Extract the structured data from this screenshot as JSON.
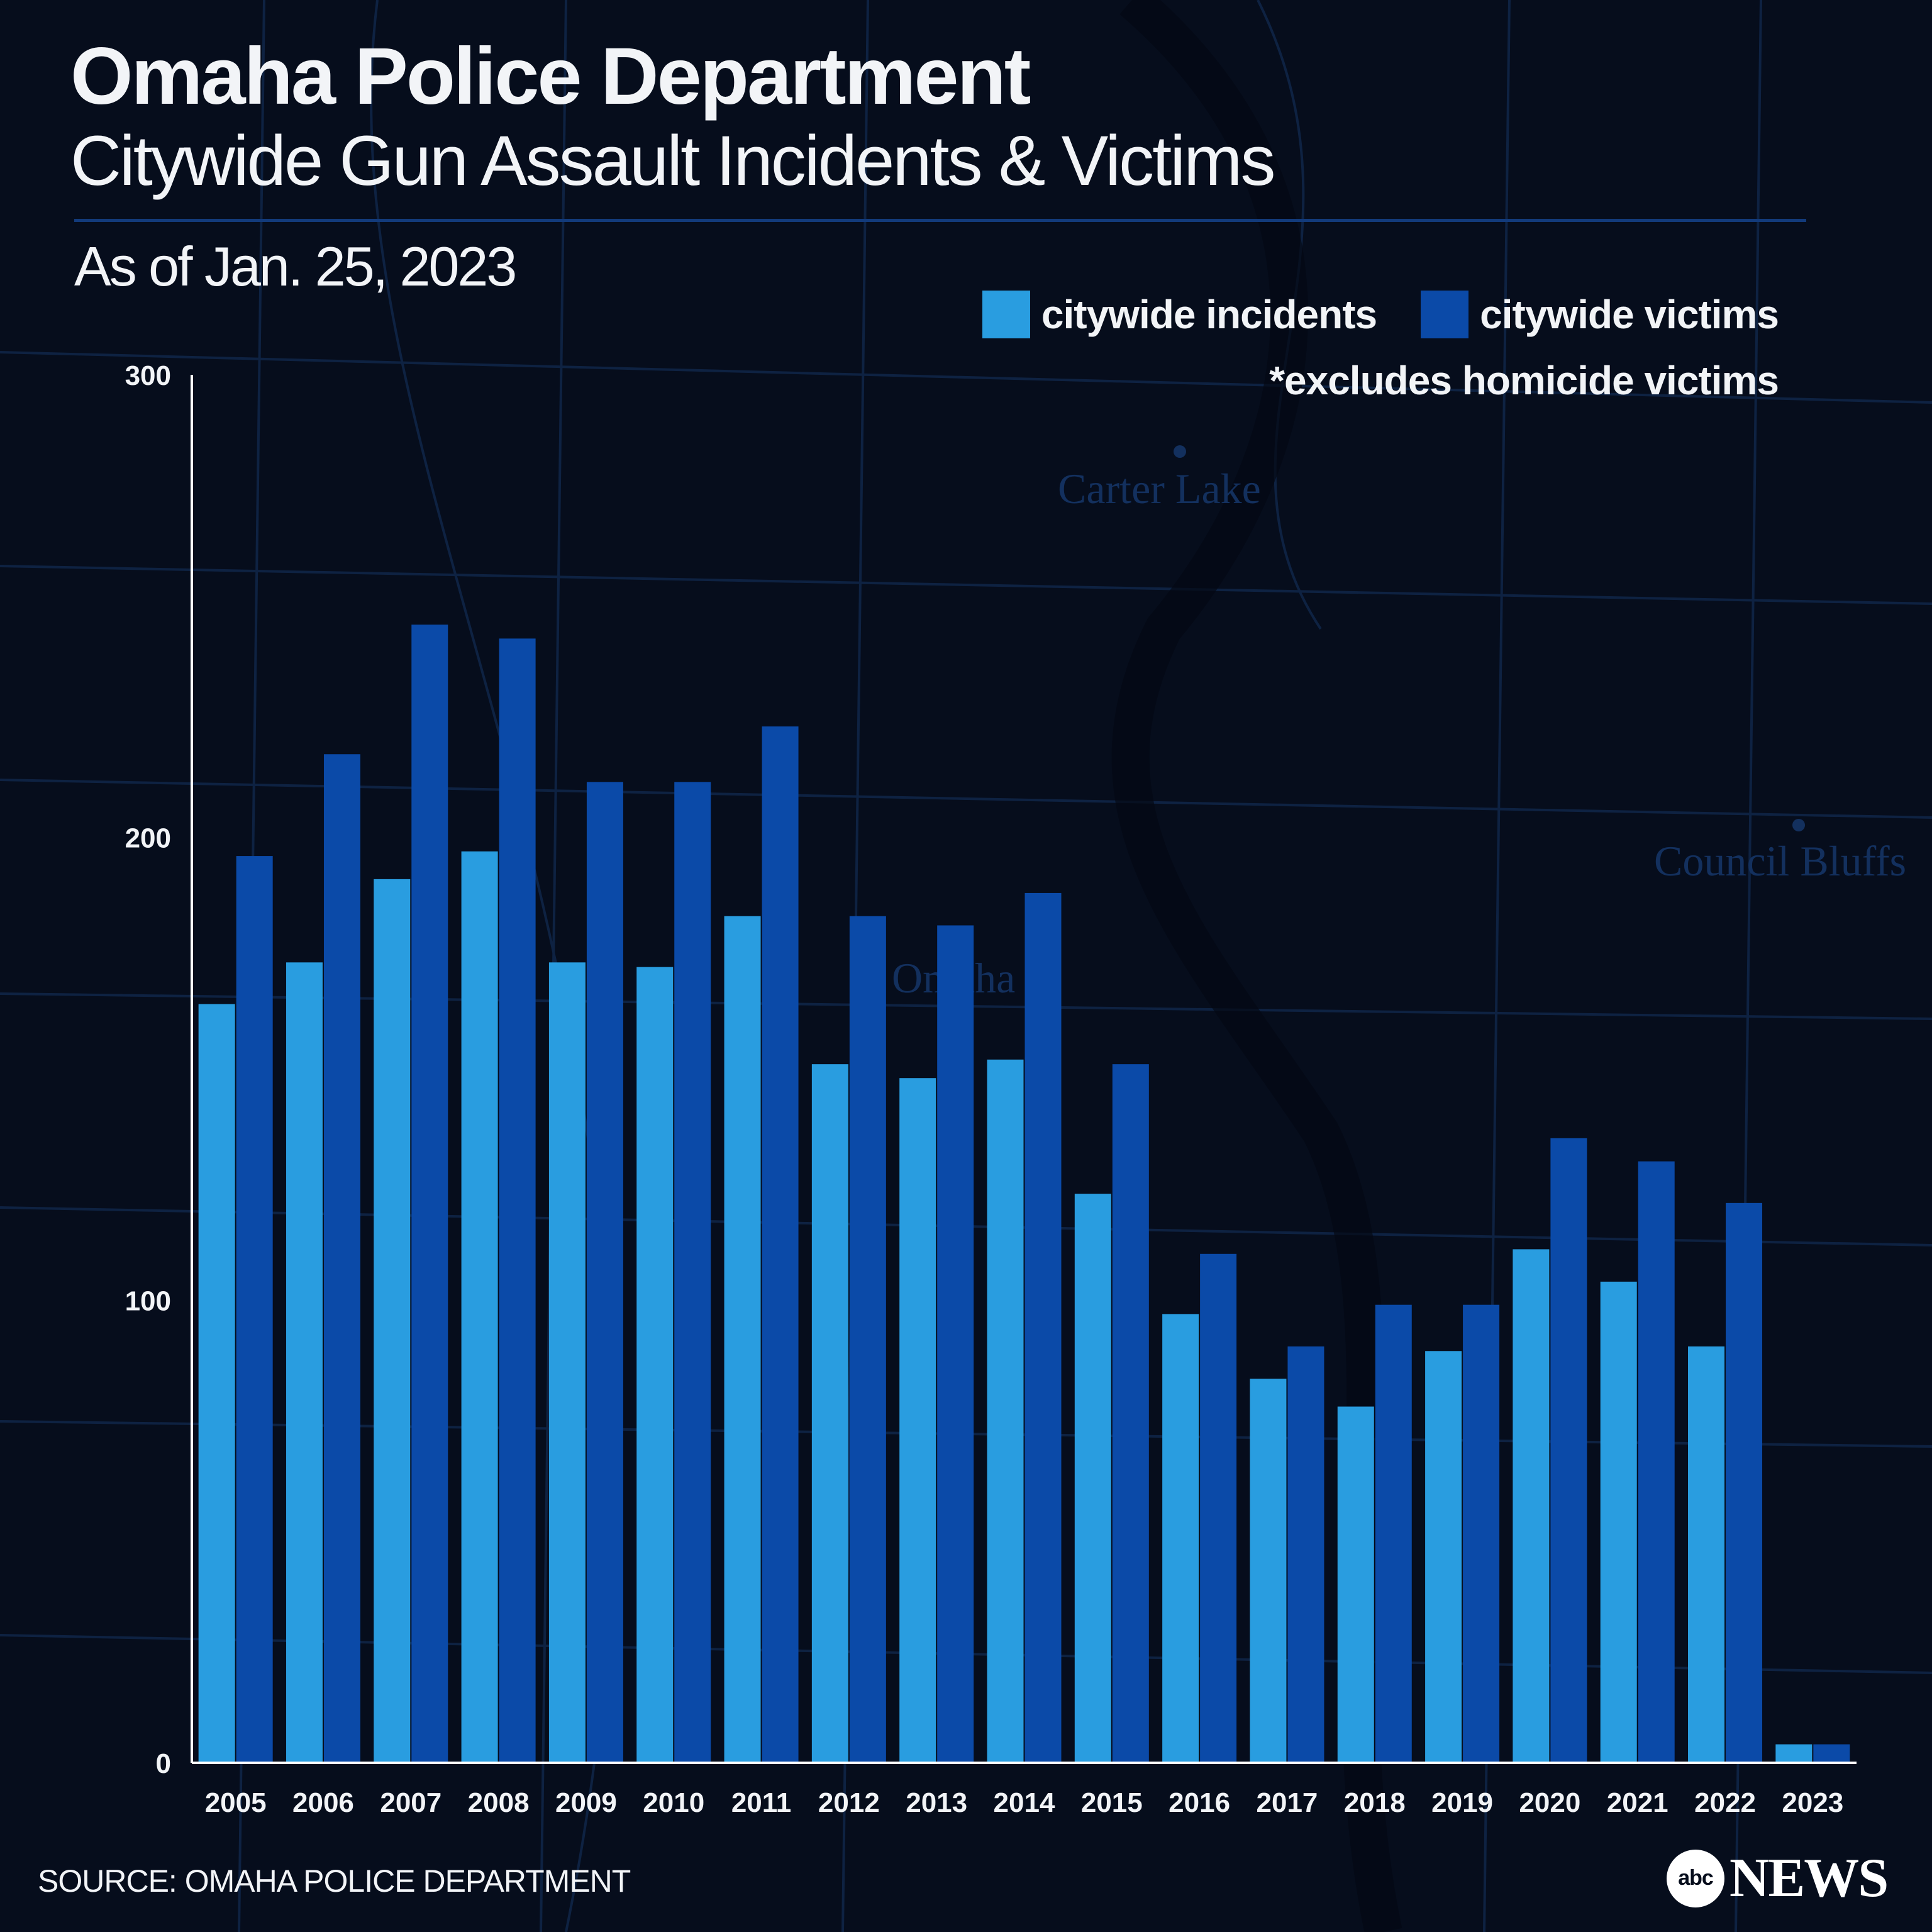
{
  "header": {
    "title": "Omaha Police Department",
    "subtitle": "Citywide Gun Assault Incidents & Victims",
    "as_of": "As of Jan. 25, 2023"
  },
  "legend": {
    "incidents_label": "citywide incidents",
    "victims_label": "citywide victims",
    "note": "*excludes homicide victims"
  },
  "map_labels": [
    "Carter Lake",
    "Omaha",
    "Council Bluffs"
  ],
  "footer": {
    "source": "SOURCE: OMAHA POLICE DEPARTMENT",
    "logo_mark": "abc",
    "logo_word": "NEWS"
  },
  "colors": {
    "background": "#060d1c",
    "incidents": "#299de0",
    "victims": "#0b4aa8",
    "map_lines": "#0f2547"
  },
  "chart_data": {
    "type": "bar",
    "title": "Omaha Police Department",
    "subtitle": "Citywide Gun Assault Incidents & Victims",
    "categories": [
      "2005",
      "2006",
      "2007",
      "2008",
      "2009",
      "2010",
      "2011",
      "2012",
      "2013",
      "2014",
      "2015",
      "2016",
      "2017",
      "2018",
      "2019",
      "2020",
      "2021",
      "2022",
      "2023"
    ],
    "series": [
      {
        "name": "citywide incidents",
        "values": [
          164,
          173,
          191,
          197,
          173,
          172,
          183,
          151,
          148,
          152,
          123,
          97,
          83,
          77,
          89,
          111,
          104,
          90,
          4
        ]
      },
      {
        "name": "citywide victims",
        "values": [
          196,
          218,
          246,
          243,
          212,
          212,
          224,
          183,
          181,
          188,
          151,
          110,
          90,
          99,
          99,
          135,
          130,
          121,
          4
        ]
      }
    ],
    "yticks": [
      0,
      100,
      200,
      300
    ],
    "ylim": [
      0,
      300
    ],
    "grid": false,
    "legend_position": "top-right"
  }
}
